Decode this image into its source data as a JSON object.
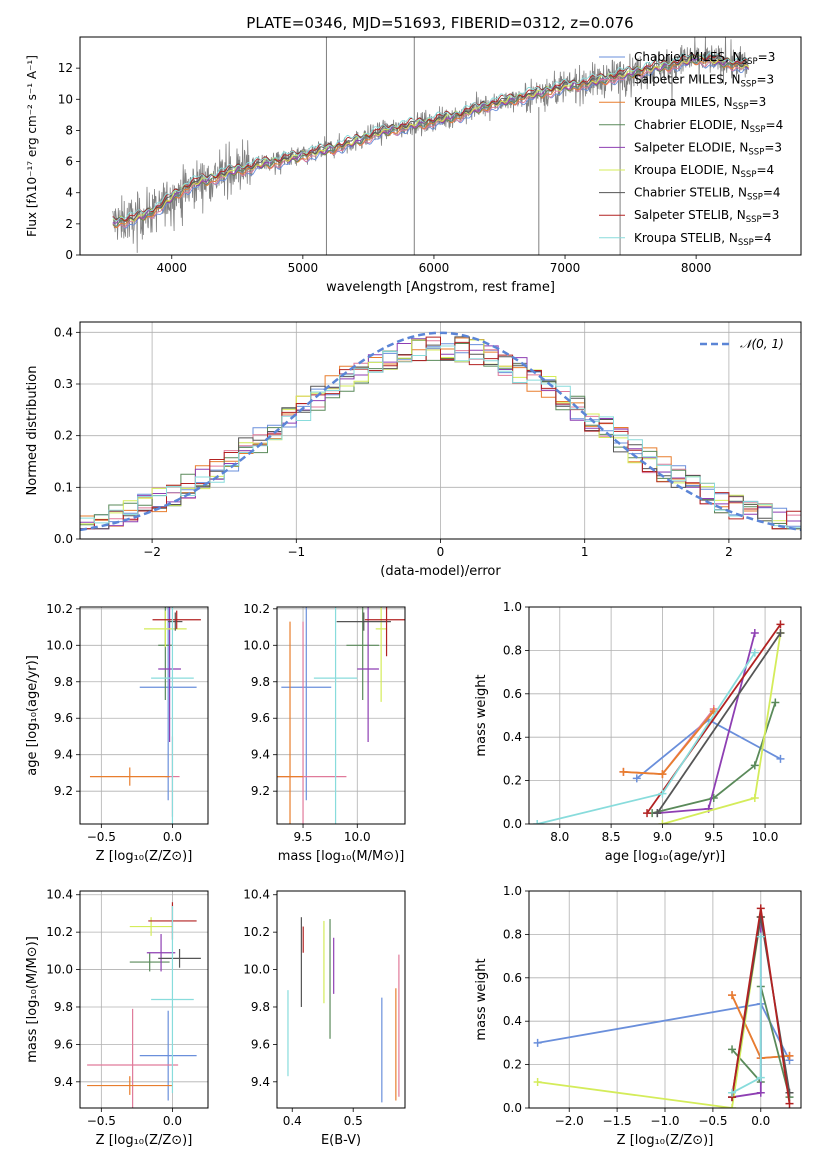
{
  "figure": {
    "title": "PLATE=0346, MJD=51693, FIBERID=0312, z=0.076"
  },
  "colors": {
    "Chabrier MILES": "#6a8fdb",
    "Salpeter MILES": "#e07a9a",
    "Kroupa MILES": "#e87e2e",
    "Chabrier ELODIE": "#5a8a5a",
    "Salpeter ELODIE": "#8e3fb3",
    "Kroupa ELODIE": "#d4ec5a",
    "Chabrier STELIB": "#555555",
    "Salpeter STELIB": "#b22222",
    "Kroupa STELIB": "#88dcdc",
    "data": "#808080",
    "normal_curve": "#5b85d6"
  },
  "chart_data": [
    {
      "id": "spectrum",
      "type": "line",
      "xlabel": "wavelength [Angstrom, rest frame]",
      "ylabel": "Flux [fλ10⁻¹⁷ erg cm⁻² s⁻¹ A⁻¹]",
      "xlim": [
        3300,
        8800
      ],
      "ylim": [
        0,
        14
      ],
      "xticks": [
        4000,
        5000,
        6000,
        7000,
        8000
      ],
      "yticks": [
        0,
        2,
        4,
        6,
        8,
        10,
        12
      ],
      "grid": false,
      "legend_loc": "right",
      "legend": [
        {
          "label": "Chabrier MILES, N",
          "sub": "SSP",
          "eq": "=3",
          "color_key": "Chabrier MILES"
        },
        {
          "label": "Salpeter MILES, N",
          "sub": "SSP",
          "eq": "=3",
          "color_key": "Salpeter MILES"
        },
        {
          "label": "Kroupa MILES, N",
          "sub": "SSP",
          "eq": "=3",
          "color_key": "Kroupa MILES"
        },
        {
          "label": "Chabrier ELODIE, N",
          "sub": "SSP",
          "eq": "=4",
          "color_key": "Chabrier ELODIE"
        },
        {
          "label": "Salpeter ELODIE, N",
          "sub": "SSP",
          "eq": "=3",
          "color_key": "Salpeter ELODIE"
        },
        {
          "label": "Kroupa ELODIE, N",
          "sub": "SSP",
          "eq": "=4",
          "color_key": "Kroupa ELODIE"
        },
        {
          "label": "Chabrier STELIB, N",
          "sub": "SSP",
          "eq": "=4",
          "color_key": "Chabrier STELIB"
        },
        {
          "label": "Salpeter STELIB, N",
          "sub": "SSP",
          "eq": "=3",
          "color_key": "Salpeter STELIB"
        },
        {
          "label": "Kroupa STELIB, N",
          "sub": "SSP",
          "eq": "=4",
          "color_key": "Kroupa STELIB"
        }
      ],
      "continuum_x": [
        3550,
        3700,
        3800,
        3900,
        4000,
        4100,
        4200,
        4300,
        4400,
        4500,
        4600,
        4700,
        4800,
        5000,
        5200,
        5400,
        5600,
        5800,
        6000,
        6200,
        6400,
        6600,
        6800,
        7000,
        7200,
        7400,
        7600,
        7800,
        8000,
        8200,
        8400
      ],
      "continuum_y": [
        2.1,
        2.3,
        2.6,
        3.0,
        3.7,
        4.3,
        4.7,
        4.9,
        5.2,
        5.5,
        5.6,
        5.9,
        6.0,
        6.4,
        6.8,
        7.3,
        7.9,
        8.3,
        8.6,
        9.0,
        9.6,
        10.0,
        10.4,
        10.8,
        11.1,
        11.5,
        11.9,
        12.2,
        12.6,
        12.4,
        12.1
      ],
      "data_x_range": [
        3550,
        8400
      ],
      "spikes": [
        {
          "x": 5180,
          "ylo": 0,
          "yhi": 14
        },
        {
          "x": 5850,
          "ylo": 0,
          "yhi": 14
        },
        {
          "x": 6800,
          "ylo": 0,
          "yhi": 9.5
        },
        {
          "x": 7420,
          "ylo": 0,
          "yhi": 12
        }
      ]
    },
    {
      "id": "residual_hist",
      "type": "bar",
      "xlabel": "(data-model)/error",
      "ylabel": "Normed distribution",
      "xlim": [
        -2.5,
        2.5
      ],
      "ylim": [
        0,
        0.42
      ],
      "xticks": [
        -2,
        -1,
        0,
        1,
        2
      ],
      "yticks": [
        0.0,
        0.1,
        0.2,
        0.3,
        0.4
      ],
      "grid": true,
      "legend_loc": "upper right",
      "legend": [
        {
          "label": "𝒩(0, 1)",
          "color_key": "normal_curve",
          "dashed": true
        }
      ],
      "bin_width": 0.1,
      "normal": {
        "mu": 0,
        "sigma": 1
      }
    },
    {
      "id": "age_vs_Z",
      "type": "errorbar",
      "xlabel": "Z [log₁₀(Z/Z⊙)]",
      "ylabel": "age  [log₁₀(age/yr)]",
      "xlim": [
        -0.65,
        0.25
      ],
      "ylim": [
        9.02,
        10.21
      ],
      "xticks": [
        -0.5,
        0.0
      ],
      "yticks": [
        9.2,
        9.4,
        9.6,
        9.8,
        10.0,
        10.2
      ],
      "grid": true,
      "points": [
        {
          "k": "Chabrier MILES",
          "x": -0.03,
          "xe": 0.2,
          "y": 9.77,
          "ye": 0.62
        },
        {
          "k": "Salpeter MILES",
          "x": 0.0,
          "xe": 0.05,
          "y": 9.28,
          "ye": 0.22
        },
        {
          "k": "Kroupa MILES",
          "x": -0.3,
          "xe": 0.28,
          "y": 9.28,
          "ye": 0.05
        },
        {
          "k": "Chabrier ELODIE",
          "x": -0.05,
          "xe": 0.05,
          "y": 10.0,
          "ye": 0.3
        },
        {
          "k": "Salpeter ELODIE",
          "x": -0.02,
          "xe": 0.08,
          "y": 9.87,
          "ye": 0.4
        },
        {
          "k": "Kroupa ELODIE",
          "x": -0.05,
          "xe": 0.15,
          "y": 10.09,
          "ye": 0.1
        },
        {
          "k": "Chabrier STELIB",
          "x": 0.02,
          "xe": 0.05,
          "y": 10.13,
          "ye": 0.05
        },
        {
          "k": "Salpeter STELIB",
          "x": 0.03,
          "xe": 0.17,
          "y": 10.14,
          "ye": 0.05
        },
        {
          "k": "Kroupa STELIB",
          "x": 0.0,
          "xe": 0.15,
          "y": 9.82,
          "ye": 0.8
        }
      ]
    },
    {
      "id": "age_vs_mass",
      "type": "errorbar",
      "xlabel": "mass [log₁₀(M/M⊙)]",
      "ylabel": "",
      "xlim": [
        9.26,
        10.44
      ],
      "ylim": [
        9.02,
        10.21
      ],
      "xticks": [
        9.5,
        10.0
      ],
      "yticks": [
        9.2,
        9.4,
        9.6,
        9.8,
        10.0,
        10.2
      ],
      "grid": true,
      "points": [
        {
          "k": "Chabrier MILES",
          "x": 9.53,
          "xe": 0.23,
          "y": 9.77,
          "ye": 0.62
        },
        {
          "k": "Salpeter MILES",
          "x": 9.5,
          "xe": 0.4,
          "y": 9.28,
          "ye": 0.85
        },
        {
          "k": "Kroupa MILES",
          "x": 9.38,
          "xe": 0.12,
          "y": 9.28,
          "ye": 0.85
        },
        {
          "k": "Chabrier ELODIE",
          "x": 10.05,
          "xe": 0.15,
          "y": 10.0,
          "ye": 0.3
        },
        {
          "k": "Salpeter ELODIE",
          "x": 10.1,
          "xe": 0.1,
          "y": 9.87,
          "ye": 0.4
        },
        {
          "k": "Kroupa ELODIE",
          "x": 10.22,
          "xe": 0.05,
          "y": 10.09,
          "ye": 0.4
        },
        {
          "k": "Chabrier STELIB",
          "x": 10.06,
          "xe": 0.25,
          "y": 10.13,
          "ye": 0.05
        },
        {
          "k": "Salpeter STELIB",
          "x": 10.27,
          "xe": 0.2,
          "y": 10.14,
          "ye": 0.2
        },
        {
          "k": "Kroupa STELIB",
          "x": 9.8,
          "xe": 0.2,
          "y": 9.82,
          "ye": 0.8
        }
      ]
    },
    {
      "id": "weight_vs_age",
      "type": "line",
      "xlabel": "age  [log₁₀(age/yr)]",
      "ylabel": "mass weight",
      "xlim": [
        7.7,
        10.35
      ],
      "ylim": [
        0,
        1
      ],
      "xticks": [
        8.0,
        8.5,
        9.0,
        9.5,
        10.0
      ],
      "yticks": [
        0.0,
        0.2,
        0.4,
        0.6,
        0.8,
        1.0
      ],
      "grid": true,
      "series": [
        {
          "k": "Chabrier MILES",
          "x": [
            8.75,
            9.45,
            10.15
          ],
          "y": [
            0.21,
            0.48,
            0.3
          ]
        },
        {
          "k": "Salpeter MILES",
          "x": [
            8.62,
            9.0,
            9.5
          ],
          "y": [
            0.24,
            0.23,
            0.53
          ]
        },
        {
          "k": "Kroupa MILES",
          "x": [
            8.62,
            9.0,
            9.5
          ],
          "y": [
            0.24,
            0.23,
            0.52
          ]
        },
        {
          "k": "Chabrier ELODIE",
          "x": [
            8.9,
            9.5,
            9.9,
            10.1
          ],
          "y": [
            0.05,
            0.12,
            0.27,
            0.56
          ]
        },
        {
          "k": "Salpeter ELODIE",
          "x": [
            8.95,
            9.45,
            9.9
          ],
          "y": [
            0.05,
            0.07,
            0.88
          ]
        },
        {
          "k": "Kroupa ELODIE",
          "x": [
            9.0,
            9.9,
            10.15
          ],
          "y": [
            0.0,
            0.12,
            0.88
          ]
        },
        {
          "k": "Chabrier STELIB",
          "x": [
            8.95,
            10.15
          ],
          "y": [
            0.05,
            0.88
          ]
        },
        {
          "k": "Salpeter STELIB",
          "x": [
            8.85,
            10.15
          ],
          "y": [
            0.05,
            0.92
          ]
        },
        {
          "k": "Kroupa STELIB",
          "x": [
            7.78,
            9.0,
            9.9
          ],
          "y": [
            0.0,
            0.14,
            0.79
          ]
        }
      ]
    },
    {
      "id": "mass_vs_Z",
      "type": "errorbar",
      "xlabel": "Z [log₁₀(Z/Z⊙)]",
      "ylabel": "mass [log₁₀(M/M⊙)]",
      "xlim": [
        -0.65,
        0.25
      ],
      "ylim": [
        9.26,
        10.42
      ],
      "xticks": [
        -0.5,
        0.0
      ],
      "yticks": [
        9.4,
        9.6,
        9.8,
        10.0,
        10.2,
        10.4
      ],
      "grid": true,
      "points": [
        {
          "k": "Chabrier MILES",
          "x": -0.03,
          "xe": 0.2,
          "y": 9.54,
          "ye": 0.24
        },
        {
          "k": "Salpeter MILES",
          "x": -0.28,
          "xe": 0.32,
          "y": 9.49,
          "ye": 0.3
        },
        {
          "k": "Kroupa MILES",
          "x": -0.3,
          "xe": 0.3,
          "y": 9.38,
          "ye": 0.05
        },
        {
          "k": "Chabrier ELODIE",
          "x": -0.16,
          "xe": 0.14,
          "y": 10.04,
          "ye": 0.05
        },
        {
          "k": "Salpeter ELODIE",
          "x": -0.08,
          "xe": 0.1,
          "y": 10.09,
          "ye": 0.1
        },
        {
          "k": "Kroupa ELODIE",
          "x": -0.15,
          "xe": 0.15,
          "y": 10.23,
          "ye": 0.05
        },
        {
          "k": "Chabrier STELIB",
          "x": 0.05,
          "xe": 0.15,
          "y": 10.06,
          "ye": 0.05
        },
        {
          "k": "Salpeter STELIB",
          "x": 0.0,
          "xe": 0.17,
          "y": 10.26,
          "ye": 0.1
        },
        {
          "k": "Kroupa STELIB",
          "x": 0.0,
          "xe": 0.15,
          "y": 9.84,
          "ye": 0.5
        }
      ]
    },
    {
      "id": "mass_vs_ebv",
      "type": "errorbar",
      "xlabel": "E(B-V)",
      "ylabel": "",
      "xlim": [
        0.375,
        0.585
      ],
      "ylim": [
        9.26,
        10.42
      ],
      "xticks": [
        0.4,
        0.5
      ],
      "yticks": [
        9.4,
        9.6,
        9.8,
        10.0,
        10.2,
        10.4
      ],
      "grid": false,
      "points": [
        {
          "k": "Chabrier MILES",
          "x": 0.547,
          "xe": 0,
          "y": 9.57,
          "ye": 0.28
        },
        {
          "k": "Salpeter MILES",
          "x": 0.575,
          "xe": 0,
          "y": 9.7,
          "ye": 0.38
        },
        {
          "k": "Kroupa MILES",
          "x": 0.57,
          "xe": 0,
          "y": 9.6,
          "ye": 0.3
        },
        {
          "k": "Chabrier ELODIE",
          "x": 0.462,
          "xe": 0,
          "y": 9.95,
          "ye": 0.32
        },
        {
          "k": "Salpeter ELODIE",
          "x": 0.468,
          "xe": 0,
          "y": 10.02,
          "ye": 0.15
        },
        {
          "k": "Kroupa ELODIE",
          "x": 0.452,
          "xe": 0,
          "y": 10.04,
          "ye": 0.22
        },
        {
          "k": "Chabrier STELIB",
          "x": 0.415,
          "xe": 0,
          "y": 10.04,
          "ye": 0.24
        },
        {
          "k": "Salpeter STELIB",
          "x": 0.418,
          "xe": 0,
          "y": 10.16,
          "ye": 0.07
        },
        {
          "k": "Kroupa STELIB",
          "x": 0.393,
          "xe": 0,
          "y": 9.66,
          "ye": 0.23
        }
      ]
    },
    {
      "id": "weight_vs_Z",
      "type": "line",
      "xlabel": "Z [log₁₀(Z/Z⊙)]",
      "ylabel": "mass weight",
      "xlim": [
        -2.42,
        0.42
      ],
      "ylim": [
        0,
        1
      ],
      "xticks": [
        -2.0,
        -1.5,
        -1.0,
        -0.5,
        0.0
      ],
      "yticks": [
        0.0,
        0.2,
        0.4,
        0.6,
        0.8,
        1.0
      ],
      "grid": true,
      "series": [
        {
          "k": "Chabrier MILES",
          "x": [
            -2.33,
            0.0,
            0.3
          ],
          "y": [
            0.3,
            0.48,
            0.22
          ]
        },
        {
          "k": "Salpeter MILES",
          "x": [
            -0.3,
            0.0,
            0.3
          ],
          "y": [
            0.52,
            0.23,
            0.24
          ]
        },
        {
          "k": "Kroupa MILES",
          "x": [
            -0.3,
            0.0,
            0.3
          ],
          "y": [
            0.52,
            0.23,
            0.24
          ]
        },
        {
          "k": "Chabrier ELODIE",
          "x": [
            -0.3,
            0.0,
            0.0,
            0.3
          ],
          "y": [
            0.27,
            0.12,
            0.56,
            0.05
          ]
        },
        {
          "k": "Salpeter ELODIE",
          "x": [
            -0.3,
            0.0,
            0.0
          ],
          "y": [
            0.05,
            0.07,
            0.88
          ]
        },
        {
          "k": "Kroupa ELODIE",
          "x": [
            -2.33,
            -0.3,
            0.0
          ],
          "y": [
            0.12,
            0.0,
            0.88
          ]
        },
        {
          "k": "Chabrier STELIB",
          "x": [
            -0.3,
            0.0,
            0.3
          ],
          "y": [
            0.05,
            0.88,
            0.07
          ]
        },
        {
          "k": "Salpeter STELIB",
          "x": [
            -0.3,
            0.0,
            0.3
          ],
          "y": [
            0.05,
            0.92,
            0.02
          ]
        },
        {
          "k": "Kroupa STELIB",
          "x": [
            -0.3,
            0.0,
            0.0
          ],
          "y": [
            0.07,
            0.14,
            0.79
          ]
        }
      ]
    }
  ]
}
